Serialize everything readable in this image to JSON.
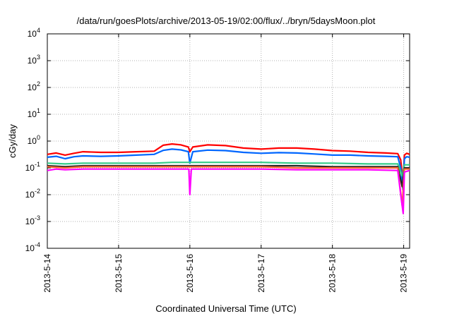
{
  "chart_data": {
    "type": "line",
    "title": "/data/run/goesPlots/archive/2013-05-19/02:00/flux/../bryn/5daysMoon.plot",
    "xlabel": "Coordinated Universal Time (UTC)",
    "ylabel": "cGy/day",
    "y_scale": "log",
    "ylim": [
      0.0001,
      10000
    ],
    "xlim": [
      "2013-05-14T00:00",
      "2013-05-19T02:00"
    ],
    "grid": true,
    "x_ticks": [
      {
        "value": "2013-05-14T00:00",
        "label": "2013-5-14"
      },
      {
        "value": "2013-05-15T00:00",
        "label": "2013-5-15"
      },
      {
        "value": "2013-05-16T00:00",
        "label": "2013-5-16"
      },
      {
        "value": "2013-05-17T00:00",
        "label": "2013-5-17"
      },
      {
        "value": "2013-05-18T00:00",
        "label": "2013-5-18"
      },
      {
        "value": "2013-05-19T00:00",
        "label": "2013-5-19"
      }
    ],
    "y_ticks": [
      {
        "value": 0.0001,
        "label": "10",
        "exp": "-4"
      },
      {
        "value": 0.001,
        "label": "10",
        "exp": "-3"
      },
      {
        "value": 0.01,
        "label": "10",
        "exp": "-2"
      },
      {
        "value": 0.1,
        "label": "10",
        "exp": "-1"
      },
      {
        "value": 1,
        "label": "10",
        "exp": "0"
      },
      {
        "value": 10,
        "label": "10",
        "exp": "1"
      },
      {
        "value": 100,
        "label": "10",
        "exp": "2"
      },
      {
        "value": 1000,
        "label": "10",
        "exp": "3"
      },
      {
        "value": 10000,
        "label": "10",
        "exp": "4"
      }
    ],
    "series": [
      {
        "color": "#ff0000",
        "points": [
          [
            "2013-05-14T00:00",
            0.32
          ],
          [
            "2013-05-14T03:00",
            0.36
          ],
          [
            "2013-05-14T06:00",
            0.3
          ],
          [
            "2013-05-14T09:00",
            0.35
          ],
          [
            "2013-05-14T12:00",
            0.4
          ],
          [
            "2013-05-14T18:00",
            0.38
          ],
          [
            "2013-05-15T00:00",
            0.38
          ],
          [
            "2013-05-15T06:00",
            0.4
          ],
          [
            "2013-05-15T12:00",
            0.42
          ],
          [
            "2013-05-15T15:00",
            0.7
          ],
          [
            "2013-05-15T18:00",
            0.78
          ],
          [
            "2013-05-15T21:00",
            0.72
          ],
          [
            "2013-05-15T23:30",
            0.6
          ],
          [
            "2013-05-16T00:00",
            0.4
          ],
          [
            "2013-05-16T01:00",
            0.6
          ],
          [
            "2013-05-16T06:00",
            0.72
          ],
          [
            "2013-05-16T12:00",
            0.68
          ],
          [
            "2013-05-16T18:00",
            0.55
          ],
          [
            "2013-05-17T00:00",
            0.5
          ],
          [
            "2013-05-17T06:00",
            0.55
          ],
          [
            "2013-05-17T12:00",
            0.55
          ],
          [
            "2013-05-17T18:00",
            0.5
          ],
          [
            "2013-05-18T00:00",
            0.44
          ],
          [
            "2013-05-18T06:00",
            0.42
          ],
          [
            "2013-05-18T12:00",
            0.38
          ],
          [
            "2013-05-18T18:00",
            0.36
          ],
          [
            "2013-05-18T22:00",
            0.34
          ],
          [
            "2013-05-18T23:00",
            0.2
          ],
          [
            "2013-05-18T23:45",
            0.03
          ],
          [
            "2013-05-19T00:15",
            0.3
          ],
          [
            "2013-05-19T01:00",
            0.35
          ],
          [
            "2013-05-19T02:00",
            0.32
          ]
        ]
      },
      {
        "color": "#0066ff",
        "points": [
          [
            "2013-05-14T00:00",
            0.25
          ],
          [
            "2013-05-14T03:00",
            0.27
          ],
          [
            "2013-05-14T06:00",
            0.22
          ],
          [
            "2013-05-14T09:00",
            0.26
          ],
          [
            "2013-05-14T12:00",
            0.28
          ],
          [
            "2013-05-14T18:00",
            0.27
          ],
          [
            "2013-05-15T00:00",
            0.28
          ],
          [
            "2013-05-15T06:00",
            0.3
          ],
          [
            "2013-05-15T12:00",
            0.32
          ],
          [
            "2013-05-15T15:00",
            0.45
          ],
          [
            "2013-05-15T18:00",
            0.5
          ],
          [
            "2013-05-15T21:00",
            0.47
          ],
          [
            "2013-05-15T23:30",
            0.4
          ],
          [
            "2013-05-16T00:00",
            0.15
          ],
          [
            "2013-05-16T01:00",
            0.4
          ],
          [
            "2013-05-16T06:00",
            0.46
          ],
          [
            "2013-05-16T12:00",
            0.44
          ],
          [
            "2013-05-16T18:00",
            0.38
          ],
          [
            "2013-05-17T00:00",
            0.35
          ],
          [
            "2013-05-17T06:00",
            0.37
          ],
          [
            "2013-05-17T12:00",
            0.36
          ],
          [
            "2013-05-17T18:00",
            0.33
          ],
          [
            "2013-05-18T00:00",
            0.3
          ],
          [
            "2013-05-18T06:00",
            0.3
          ],
          [
            "2013-05-18T12:00",
            0.28
          ],
          [
            "2013-05-18T18:00",
            0.27
          ],
          [
            "2013-05-18T22:00",
            0.26
          ],
          [
            "2013-05-18T23:00",
            0.1
          ],
          [
            "2013-05-18T23:45",
            0.015
          ],
          [
            "2013-05-19T00:15",
            0.22
          ],
          [
            "2013-05-19T01:00",
            0.26
          ],
          [
            "2013-05-19T02:00",
            0.25
          ]
        ]
      },
      {
        "color": "#33cc88",
        "points": [
          [
            "2013-05-14T00:00",
            0.15
          ],
          [
            "2013-05-14T06:00",
            0.14
          ],
          [
            "2013-05-14T12:00",
            0.15
          ],
          [
            "2013-05-15T00:00",
            0.15
          ],
          [
            "2013-05-15T12:00",
            0.15
          ],
          [
            "2013-05-15T18:00",
            0.16
          ],
          [
            "2013-05-16T00:00",
            0.16
          ],
          [
            "2013-05-16T06:00",
            0.16
          ],
          [
            "2013-05-16T12:00",
            0.16
          ],
          [
            "2013-05-17T00:00",
            0.16
          ],
          [
            "2013-05-17T12:00",
            0.15
          ],
          [
            "2013-05-18T00:00",
            0.15
          ],
          [
            "2013-05-18T12:00",
            0.14
          ],
          [
            "2013-05-18T22:00",
            0.14
          ],
          [
            "2013-05-18T23:30",
            0.05
          ],
          [
            "2013-05-19T00:15",
            0.13
          ],
          [
            "2013-05-19T02:00",
            0.13
          ]
        ]
      },
      {
        "color": "#222222",
        "points": [
          [
            "2013-05-14T00:00",
            0.12
          ],
          [
            "2013-05-14T06:00",
            0.11
          ],
          [
            "2013-05-14T12:00",
            0.12
          ],
          [
            "2013-05-15T00:00",
            0.12
          ],
          [
            "2013-05-15T12:00",
            0.12
          ],
          [
            "2013-05-15T18:00",
            0.12
          ],
          [
            "2013-05-16T00:00",
            0.12
          ],
          [
            "2013-05-16T06:00",
            0.12
          ],
          [
            "2013-05-16T12:00",
            0.12
          ],
          [
            "2013-05-17T00:00",
            0.12
          ],
          [
            "2013-05-17T12:00",
            0.12
          ],
          [
            "2013-05-18T00:00",
            0.11
          ],
          [
            "2013-05-18T12:00",
            0.11
          ],
          [
            "2013-05-18T22:00",
            0.11
          ],
          [
            "2013-05-18T23:30",
            0.02
          ],
          [
            "2013-05-19T00:15",
            0.1
          ],
          [
            "2013-05-19T02:00",
            0.1
          ]
        ]
      },
      {
        "color": "#ff6633",
        "points": [
          [
            "2013-05-14T00:00",
            0.11
          ],
          [
            "2013-05-14T06:00",
            0.1
          ],
          [
            "2013-05-14T12:00",
            0.11
          ],
          [
            "2013-05-15T00:00",
            0.11
          ],
          [
            "2013-05-15T12:00",
            0.11
          ],
          [
            "2013-05-16T00:00",
            0.11
          ],
          [
            "2013-05-16T12:00",
            0.11
          ],
          [
            "2013-05-17T00:00",
            0.11
          ],
          [
            "2013-05-17T12:00",
            0.1
          ],
          [
            "2013-05-18T00:00",
            0.1
          ],
          [
            "2013-05-18T12:00",
            0.1
          ],
          [
            "2013-05-18T22:00",
            0.1
          ],
          [
            "2013-05-18T23:30",
            0.004
          ],
          [
            "2013-05-19T00:15",
            0.09
          ],
          [
            "2013-05-19T02:00",
            0.09
          ]
        ]
      },
      {
        "color": "#ff00ff",
        "points": [
          [
            "2013-05-14T00:00",
            0.08
          ],
          [
            "2013-05-14T03:00",
            0.09
          ],
          [
            "2013-05-14T06:00",
            0.085
          ],
          [
            "2013-05-14T12:00",
            0.09
          ],
          [
            "2013-05-15T00:00",
            0.09
          ],
          [
            "2013-05-15T12:00",
            0.09
          ],
          [
            "2013-05-15T18:00",
            0.09
          ],
          [
            "2013-05-15T23:40",
            0.09
          ],
          [
            "2013-05-16T00:00",
            0.01
          ],
          [
            "2013-05-16T00:30",
            0.09
          ],
          [
            "2013-05-16T12:00",
            0.09
          ],
          [
            "2013-05-17T00:00",
            0.09
          ],
          [
            "2013-05-17T12:00",
            0.085
          ],
          [
            "2013-05-18T00:00",
            0.085
          ],
          [
            "2013-05-18T12:00",
            0.085
          ],
          [
            "2013-05-18T22:00",
            0.08
          ],
          [
            "2013-05-18T23:00",
            0.01
          ],
          [
            "2013-05-18T23:50",
            0.002
          ],
          [
            "2013-05-19T00:15",
            0.07
          ],
          [
            "2013-05-19T02:00",
            0.08
          ]
        ]
      }
    ]
  }
}
